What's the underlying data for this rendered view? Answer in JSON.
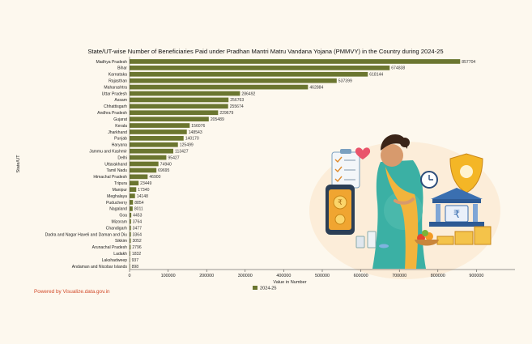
{
  "credit": "Powered by Visualize.data.gov.in",
  "colors": {
    "bar": "#6b7630",
    "text": "#111111",
    "credit": "#d24a2a"
  },
  "illustration": "pregnant-woman-illustration",
  "chart_data": {
    "type": "bar",
    "orientation": "horizontal",
    "title": "State/UT-wise Number of Beneficiaries Paid under Pradhan Mantri Matru Vandana Yojana (PMMVY) in the Country during 2024-25",
    "xlabel": "Value in Number",
    "ylabel": "State/UT",
    "xlim": [
      0,
      1000000
    ],
    "xticks": [
      0,
      100000,
      200000,
      300000,
      400000,
      500000,
      600000,
      700000,
      800000,
      900000
    ],
    "xtick_labels": [
      "0",
      "100000",
      "200000",
      "300000",
      "400000",
      "500000",
      "600000",
      "700000",
      "800000",
      "900000"
    ],
    "grid": false,
    "legend_position": "bottom-center",
    "categories": [
      "Madhya Pradesh",
      "Bihar",
      "Karnataka",
      "Rajasthan",
      "Maharashtra",
      "Uttar Pradesh",
      "Assam",
      "Chhattisgarh",
      "Andhra Pradesh",
      "Gujarat",
      "Kerala",
      "Jharkhand",
      "Punjab",
      "Haryana",
      "Jammu and Kashmir",
      "Delhi",
      "Uttarakhand",
      "Tamil Nadu",
      "Himachal Pradesh",
      "Tripura",
      "Manipur",
      "Meghalaya",
      "Puducherry",
      "Nagaland",
      "Goa",
      "Mizoram",
      "Chandigarh",
      "Dadra and Nagar Haveli and Daman and Diu",
      "Sikkim",
      "Arunachal Pradesh",
      "Ladakh",
      "Lakshadweep",
      "Andaman and Nicobar Islands"
    ],
    "series": [
      {
        "name": "2024-25",
        "values": [
          857704,
          674838,
          618144,
          537399,
          462884,
          286492,
          256763,
          255674,
          229679,
          205489,
          156076,
          148543,
          140170,
          125499,
          113427,
          95427,
          74940,
          69695,
          46900,
          23449,
          17340,
          14148,
          8854,
          8011,
          4453,
          3764,
          3477,
          3364,
          3052,
          2796,
          1832,
          937,
          898
        ],
        "labels": [
          "857704",
          "674838",
          "618144",
          "537399",
          "462884",
          "286492",
          "256763",
          "255674",
          "229679",
          "205489",
          "156076",
          "148543",
          "140170",
          "125499",
          "113427",
          "95427",
          "74940",
          "69695",
          "46900",
          "23449",
          "17340",
          "14148",
          "8854",
          "8011",
          "4453",
          "3764",
          "3477",
          "3364",
          "3052",
          "2796",
          "1832",
          "937",
          "898"
        ]
      }
    ]
  }
}
